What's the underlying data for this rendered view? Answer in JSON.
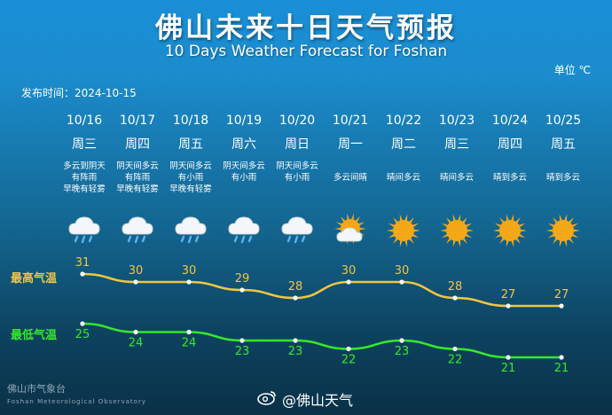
{
  "title": "佛山未来十日天气预报",
  "subtitle": "10 Days Weather Forecast for Foshan",
  "unit_label": "单位 ℃",
  "publish_label": "发布时间：2024-10-15",
  "high_label": "最高气温",
  "low_label": "最低气温",
  "footer": {
    "org_cn": "佛山市气象台",
    "org_en": "Foshan Meteorological Observatory",
    "weibo": "@佛山天气"
  },
  "days": [
    {
      "date": "10/16",
      "weekday": "周三",
      "desc": [
        "多云到阴天",
        "有阵雨",
        "早晚有轻雾"
      ],
      "icon": "cloud-rain-icon",
      "high": 31,
      "low": 25
    },
    {
      "date": "10/17",
      "weekday": "周四",
      "desc": [
        "阴天间多云",
        "有阵雨",
        "早晚有轻雾"
      ],
      "icon": "cloud-rain-icon",
      "high": 30,
      "low": 24
    },
    {
      "date": "10/18",
      "weekday": "周五",
      "desc": [
        "阴天间多云",
        "有小雨",
        "早晚有轻雾"
      ],
      "icon": "cloud-rain-icon",
      "high": 30,
      "low": 24
    },
    {
      "date": "10/19",
      "weekday": "周六",
      "desc": [
        "阴天间多云",
        "有小雨"
      ],
      "icon": "cloud-rain-icon",
      "high": 29,
      "low": 23
    },
    {
      "date": "10/20",
      "weekday": "周日",
      "desc": [
        "阴天间多云",
        "有小雨"
      ],
      "icon": "cloud-rain-icon",
      "high": 28,
      "low": 23
    },
    {
      "date": "10/21",
      "weekday": "周一",
      "desc": [
        "",
        "多云间晴"
      ],
      "icon": "sun-cloud-icon",
      "high": 30,
      "low": 22
    },
    {
      "date": "10/22",
      "weekday": "周二",
      "desc": [
        "",
        "晴间多云"
      ],
      "icon": "sun-icon",
      "high": 30,
      "low": 23
    },
    {
      "date": "10/23",
      "weekday": "周三",
      "desc": [
        "",
        "晴间多云"
      ],
      "icon": "sun-icon",
      "high": 28,
      "low": 22
    },
    {
      "date": "10/24",
      "weekday": "周四",
      "desc": [
        "",
        "晴到多云"
      ],
      "icon": "sun-icon",
      "high": 27,
      "low": 21
    },
    {
      "date": "10/25",
      "weekday": "周五",
      "desc": [
        "",
        "晴到多云"
      ],
      "icon": "sun-icon",
      "high": 27,
      "low": 21
    }
  ],
  "colors": {
    "high_line": "#f0c640",
    "low_line": "#35e82a",
    "sun": "#f5a817"
  }
}
